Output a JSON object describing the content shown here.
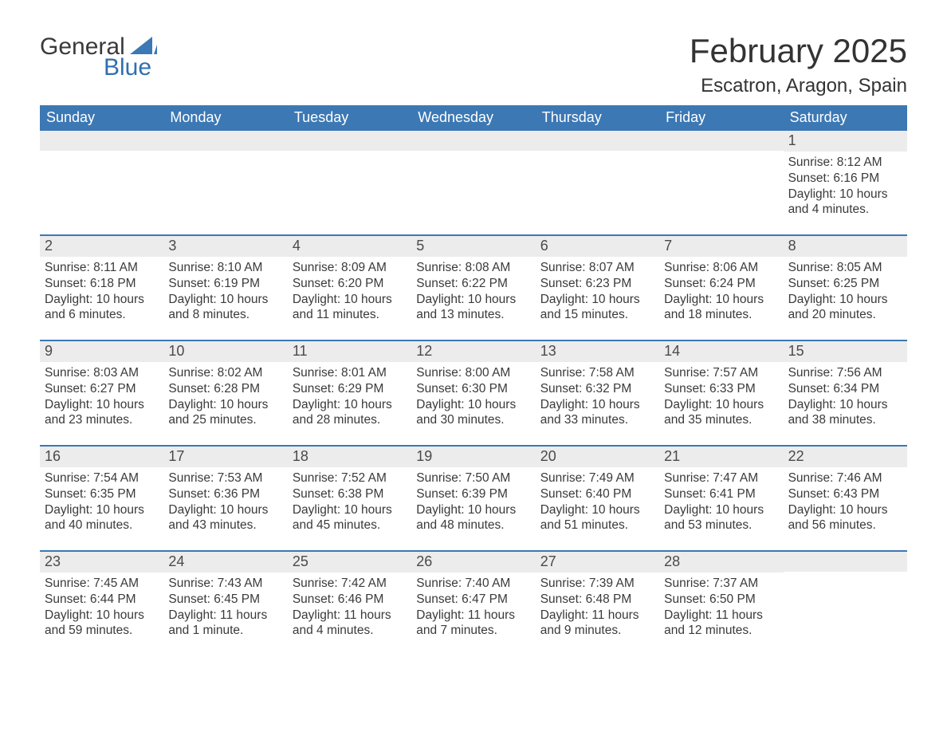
{
  "logo": {
    "part1": "General",
    "part2": "Blue",
    "sail_color": "#3c78b4"
  },
  "title": "February 2025",
  "location": "Escatron, Aragon, Spain",
  "colors": {
    "header_bg": "#3c78b4",
    "header_text": "#ffffff",
    "daynum_bg": "#ececec",
    "border": "#3c78b4",
    "body_text": "#3a3a3a",
    "logo_blue": "#2f6fb0"
  },
  "dow": [
    "Sunday",
    "Monday",
    "Tuesday",
    "Wednesday",
    "Thursday",
    "Friday",
    "Saturday"
  ],
  "weeks": [
    [
      null,
      null,
      null,
      null,
      null,
      null,
      {
        "n": "1",
        "sr": "Sunrise: 8:12 AM",
        "ss": "Sunset: 6:16 PM",
        "dl": "Daylight: 10 hours and 4 minutes."
      }
    ],
    [
      {
        "n": "2",
        "sr": "Sunrise: 8:11 AM",
        "ss": "Sunset: 6:18 PM",
        "dl": "Daylight: 10 hours and 6 minutes."
      },
      {
        "n": "3",
        "sr": "Sunrise: 8:10 AM",
        "ss": "Sunset: 6:19 PM",
        "dl": "Daylight: 10 hours and 8 minutes."
      },
      {
        "n": "4",
        "sr": "Sunrise: 8:09 AM",
        "ss": "Sunset: 6:20 PM",
        "dl": "Daylight: 10 hours and 11 minutes."
      },
      {
        "n": "5",
        "sr": "Sunrise: 8:08 AM",
        "ss": "Sunset: 6:22 PM",
        "dl": "Daylight: 10 hours and 13 minutes."
      },
      {
        "n": "6",
        "sr": "Sunrise: 8:07 AM",
        "ss": "Sunset: 6:23 PM",
        "dl": "Daylight: 10 hours and 15 minutes."
      },
      {
        "n": "7",
        "sr": "Sunrise: 8:06 AM",
        "ss": "Sunset: 6:24 PM",
        "dl": "Daylight: 10 hours and 18 minutes."
      },
      {
        "n": "8",
        "sr": "Sunrise: 8:05 AM",
        "ss": "Sunset: 6:25 PM",
        "dl": "Daylight: 10 hours and 20 minutes."
      }
    ],
    [
      {
        "n": "9",
        "sr": "Sunrise: 8:03 AM",
        "ss": "Sunset: 6:27 PM",
        "dl": "Daylight: 10 hours and 23 minutes."
      },
      {
        "n": "10",
        "sr": "Sunrise: 8:02 AM",
        "ss": "Sunset: 6:28 PM",
        "dl": "Daylight: 10 hours and 25 minutes."
      },
      {
        "n": "11",
        "sr": "Sunrise: 8:01 AM",
        "ss": "Sunset: 6:29 PM",
        "dl": "Daylight: 10 hours and 28 minutes."
      },
      {
        "n": "12",
        "sr": "Sunrise: 8:00 AM",
        "ss": "Sunset: 6:30 PM",
        "dl": "Daylight: 10 hours and 30 minutes."
      },
      {
        "n": "13",
        "sr": "Sunrise: 7:58 AM",
        "ss": "Sunset: 6:32 PM",
        "dl": "Daylight: 10 hours and 33 minutes."
      },
      {
        "n": "14",
        "sr": "Sunrise: 7:57 AM",
        "ss": "Sunset: 6:33 PM",
        "dl": "Daylight: 10 hours and 35 minutes."
      },
      {
        "n": "15",
        "sr": "Sunrise: 7:56 AM",
        "ss": "Sunset: 6:34 PM",
        "dl": "Daylight: 10 hours and 38 minutes."
      }
    ],
    [
      {
        "n": "16",
        "sr": "Sunrise: 7:54 AM",
        "ss": "Sunset: 6:35 PM",
        "dl": "Daylight: 10 hours and 40 minutes."
      },
      {
        "n": "17",
        "sr": "Sunrise: 7:53 AM",
        "ss": "Sunset: 6:36 PM",
        "dl": "Daylight: 10 hours and 43 minutes."
      },
      {
        "n": "18",
        "sr": "Sunrise: 7:52 AM",
        "ss": "Sunset: 6:38 PM",
        "dl": "Daylight: 10 hours and 45 minutes."
      },
      {
        "n": "19",
        "sr": "Sunrise: 7:50 AM",
        "ss": "Sunset: 6:39 PM",
        "dl": "Daylight: 10 hours and 48 minutes."
      },
      {
        "n": "20",
        "sr": "Sunrise: 7:49 AM",
        "ss": "Sunset: 6:40 PM",
        "dl": "Daylight: 10 hours and 51 minutes."
      },
      {
        "n": "21",
        "sr": "Sunrise: 7:47 AM",
        "ss": "Sunset: 6:41 PM",
        "dl": "Daylight: 10 hours and 53 minutes."
      },
      {
        "n": "22",
        "sr": "Sunrise: 7:46 AM",
        "ss": "Sunset: 6:43 PM",
        "dl": "Daylight: 10 hours and 56 minutes."
      }
    ],
    [
      {
        "n": "23",
        "sr": "Sunrise: 7:45 AM",
        "ss": "Sunset: 6:44 PM",
        "dl": "Daylight: 10 hours and 59 minutes."
      },
      {
        "n": "24",
        "sr": "Sunrise: 7:43 AM",
        "ss": "Sunset: 6:45 PM",
        "dl": "Daylight: 11 hours and 1 minute."
      },
      {
        "n": "25",
        "sr": "Sunrise: 7:42 AM",
        "ss": "Sunset: 6:46 PM",
        "dl": "Daylight: 11 hours and 4 minutes."
      },
      {
        "n": "26",
        "sr": "Sunrise: 7:40 AM",
        "ss": "Sunset: 6:47 PM",
        "dl": "Daylight: 11 hours and 7 minutes."
      },
      {
        "n": "27",
        "sr": "Sunrise: 7:39 AM",
        "ss": "Sunset: 6:48 PM",
        "dl": "Daylight: 11 hours and 9 minutes."
      },
      {
        "n": "28",
        "sr": "Sunrise: 7:37 AM",
        "ss": "Sunset: 6:50 PM",
        "dl": "Daylight: 11 hours and 12 minutes."
      },
      null
    ]
  ]
}
